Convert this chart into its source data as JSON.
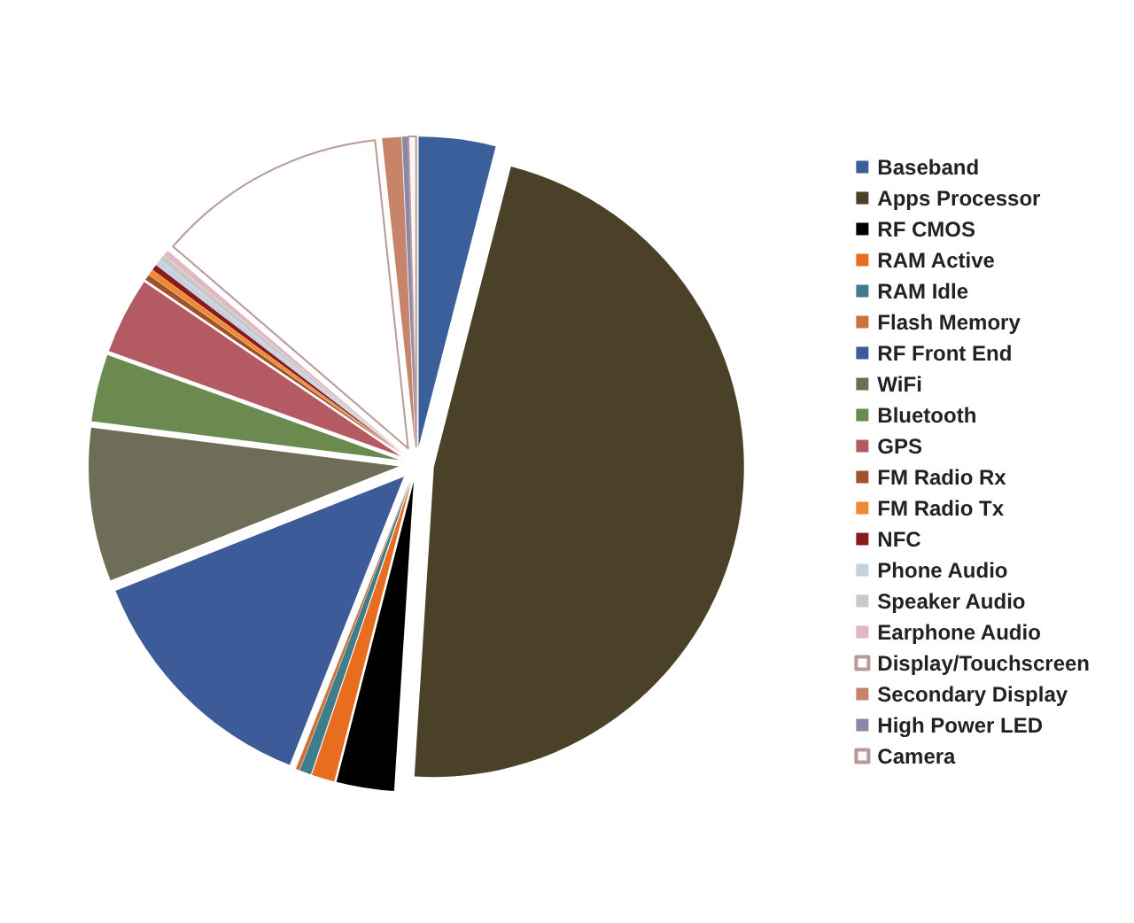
{
  "chart_data": {
    "type": "pie",
    "categories": [
      "Baseband",
      "Apps Processor",
      "RF CMOS",
      "RAM Active",
      "RAM Idle",
      "Flash Memory",
      "RF Front End",
      "WiFi",
      "Bluetooth",
      "GPS",
      "FM Radio Rx",
      "FM Radio Tx",
      "NFC",
      "Phone Audio",
      "Speaker Audio",
      "Earphone Audio",
      "Display/Touchscreen",
      "Secondary Display",
      "High Power LED",
      "Camera"
    ],
    "values": [
      4,
      47,
      3,
      1.2,
      0.6,
      0.2,
      13,
      8,
      3.5,
      4,
      0.3,
      0.3,
      0.3,
      0.3,
      0.3,
      0.3,
      12,
      1,
      0.3,
      0.4
    ],
    "colors": [
      "#3a5f9a",
      "#4a4128",
      "#000000",
      "#e86d1f",
      "#3f7c8c",
      "#c8733a",
      "#3d5a99",
      "#6e6e58",
      "#6a8a50",
      "#b35a62",
      "#a0522d",
      "#f08a30",
      "#8b1a1a",
      "#c5d0e0",
      "#c8c8c8",
      "#e0b8c0",
      "#ffffff",
      "#c8846a",
      "#8888aa",
      "#fdf6f4"
    ],
    "legend": "right"
  }
}
